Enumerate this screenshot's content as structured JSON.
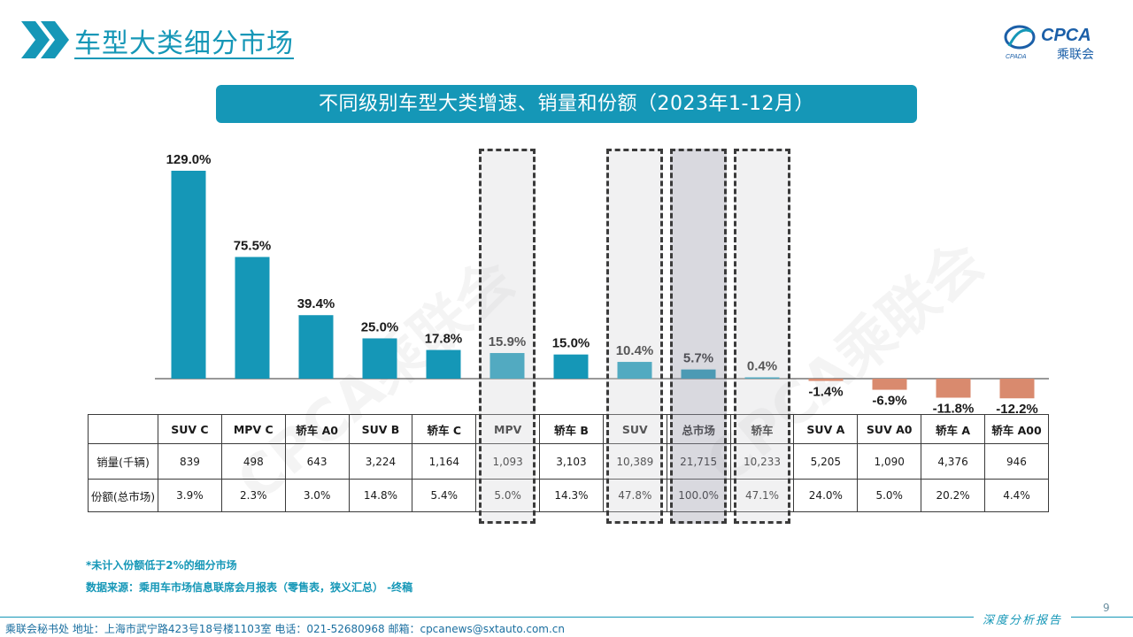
{
  "header": {
    "title": "车型大类细分市场",
    "logo_text": "CPCA",
    "logo_sub": "乘联会",
    "logo_mark": "CPADA"
  },
  "banner": {
    "title": "不同级别车型大类增速、销量和份额（2023年1-12月）"
  },
  "chart_data": {
    "type": "bar",
    "categories": [
      "SUV C",
      "MPV C",
      "轿车 A0",
      "SUV B",
      "轿车 C",
      "MPV",
      "轿车 B",
      "SUV",
      "总市场",
      "轿车",
      "SUV A",
      "SUV A0",
      "轿车 A",
      "轿车 A00"
    ],
    "values": [
      129.0,
      75.5,
      39.4,
      25.0,
      17.8,
      15.9,
      15.0,
      10.4,
      5.7,
      0.4,
      -1.4,
      -6.9,
      -11.8,
      -12.2
    ],
    "value_labels": [
      "129.0%",
      "75.5%",
      "39.4%",
      "25.0%",
      "17.8%",
      "15.9%",
      "15.0%",
      "10.4%",
      "5.7%",
      "0.4%",
      "-1.4%",
      "-6.9%",
      "-11.8%",
      "-12.2%"
    ],
    "ylim": [
      -15,
      135
    ],
    "grid": false,
    "colors": {
      "positive": "#1597b7",
      "negative": "#d98a6e"
    },
    "highlighted": [
      "MPV",
      "SUV",
      "总市场",
      "轿车"
    ]
  },
  "table": {
    "row_labels": {
      "sales": "销量(千辆)",
      "share": "份额(总市场)"
    },
    "sales": [
      "839",
      "498",
      "643",
      "3,224",
      "1,164",
      "1,093",
      "3,103",
      "10,389",
      "21,715",
      "10,233",
      "5,205",
      "1,090",
      "4,376",
      "946"
    ],
    "share": [
      "3.9%",
      "2.3%",
      "3.0%",
      "14.8%",
      "5.4%",
      "5.0%",
      "14.3%",
      "47.8%",
      "100.0%",
      "47.1%",
      "24.0%",
      "5.0%",
      "20.2%",
      "4.4%"
    ]
  },
  "notes": {
    "note1": "*未计入份额低于2%的细分市场",
    "note2": "数据来源：乘用车市场信息联席会月报表（零售表，狭义汇总）  -终稿"
  },
  "footer": {
    "text": "乘联会秘书处    地址：上海市武宁路423号18号楼1103室    电话：021-52680968    邮箱：cpcanews@sxtauto.com.cn",
    "report_tag": "深度分析报告",
    "page_number": "9"
  },
  "watermark": "CPCA乘联会",
  "colors": {
    "accent": "#1597b7",
    "negative": "#d98a6e"
  }
}
